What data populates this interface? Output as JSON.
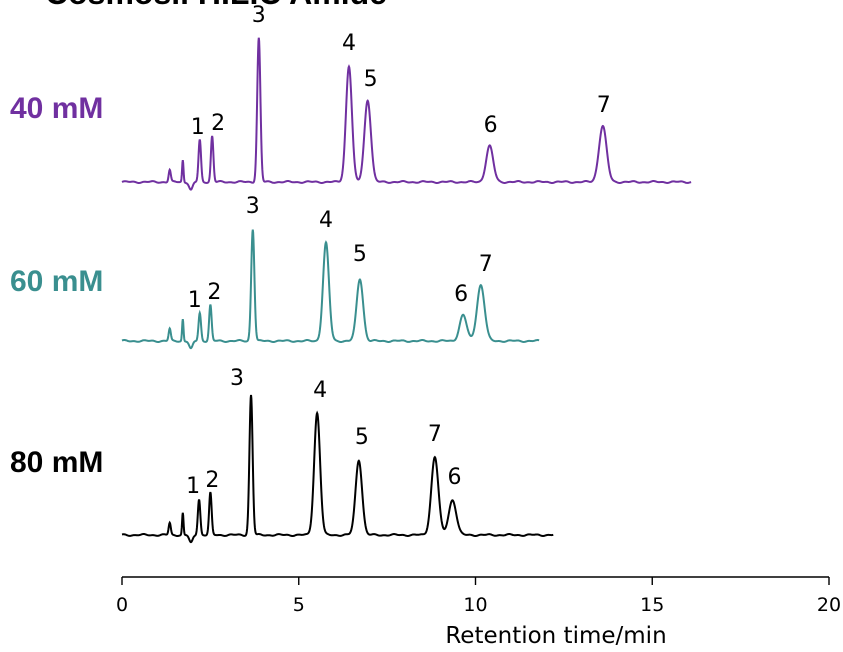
{
  "title": "Cosmosil HILIC Amide",
  "chart_data": {
    "type": "line",
    "xlabel": "Retention time/min",
    "xlim": [
      0,
      20
    ],
    "xticks": [
      0,
      5,
      10,
      15,
      20
    ],
    "grid": false,
    "series": [
      {
        "name": "40 mM",
        "color": "#7030a0",
        "run_end": 16.1,
        "peaks": [
          {
            "label": "1",
            "t": 2.2
          },
          {
            "label": "2",
            "t": 2.55
          },
          {
            "label": "3",
            "t": 3.87
          },
          {
            "label": "4",
            "t": 6.42
          },
          {
            "label": "5",
            "t": 6.95
          },
          {
            "label": "6",
            "t": 10.4
          },
          {
            "label": "7",
            "t": 13.6
          }
        ]
      },
      {
        "name": "60 mM",
        "color": "#3a8f8f",
        "run_end": 11.8,
        "peaks": [
          {
            "label": "1",
            "t": 2.2
          },
          {
            "label": "2",
            "t": 2.5
          },
          {
            "label": "3",
            "t": 3.7
          },
          {
            "label": "4",
            "t": 5.77
          },
          {
            "label": "5",
            "t": 6.73
          },
          {
            "label": "6",
            "t": 9.65
          },
          {
            "label": "7",
            "t": 10.15
          }
        ]
      },
      {
        "name": "80 mM",
        "color": "#000000",
        "run_end": 12.2,
        "peaks": [
          {
            "label": "1",
            "t": 2.18
          },
          {
            "label": "2",
            "t": 2.5
          },
          {
            "label": "3",
            "t": 3.65
          },
          {
            "label": "4",
            "t": 5.52
          },
          {
            "label": "5",
            "t": 6.7
          },
          {
            "label": "7",
            "t": 8.85
          },
          {
            "label": "6",
            "t": 9.35
          }
        ]
      }
    ]
  }
}
